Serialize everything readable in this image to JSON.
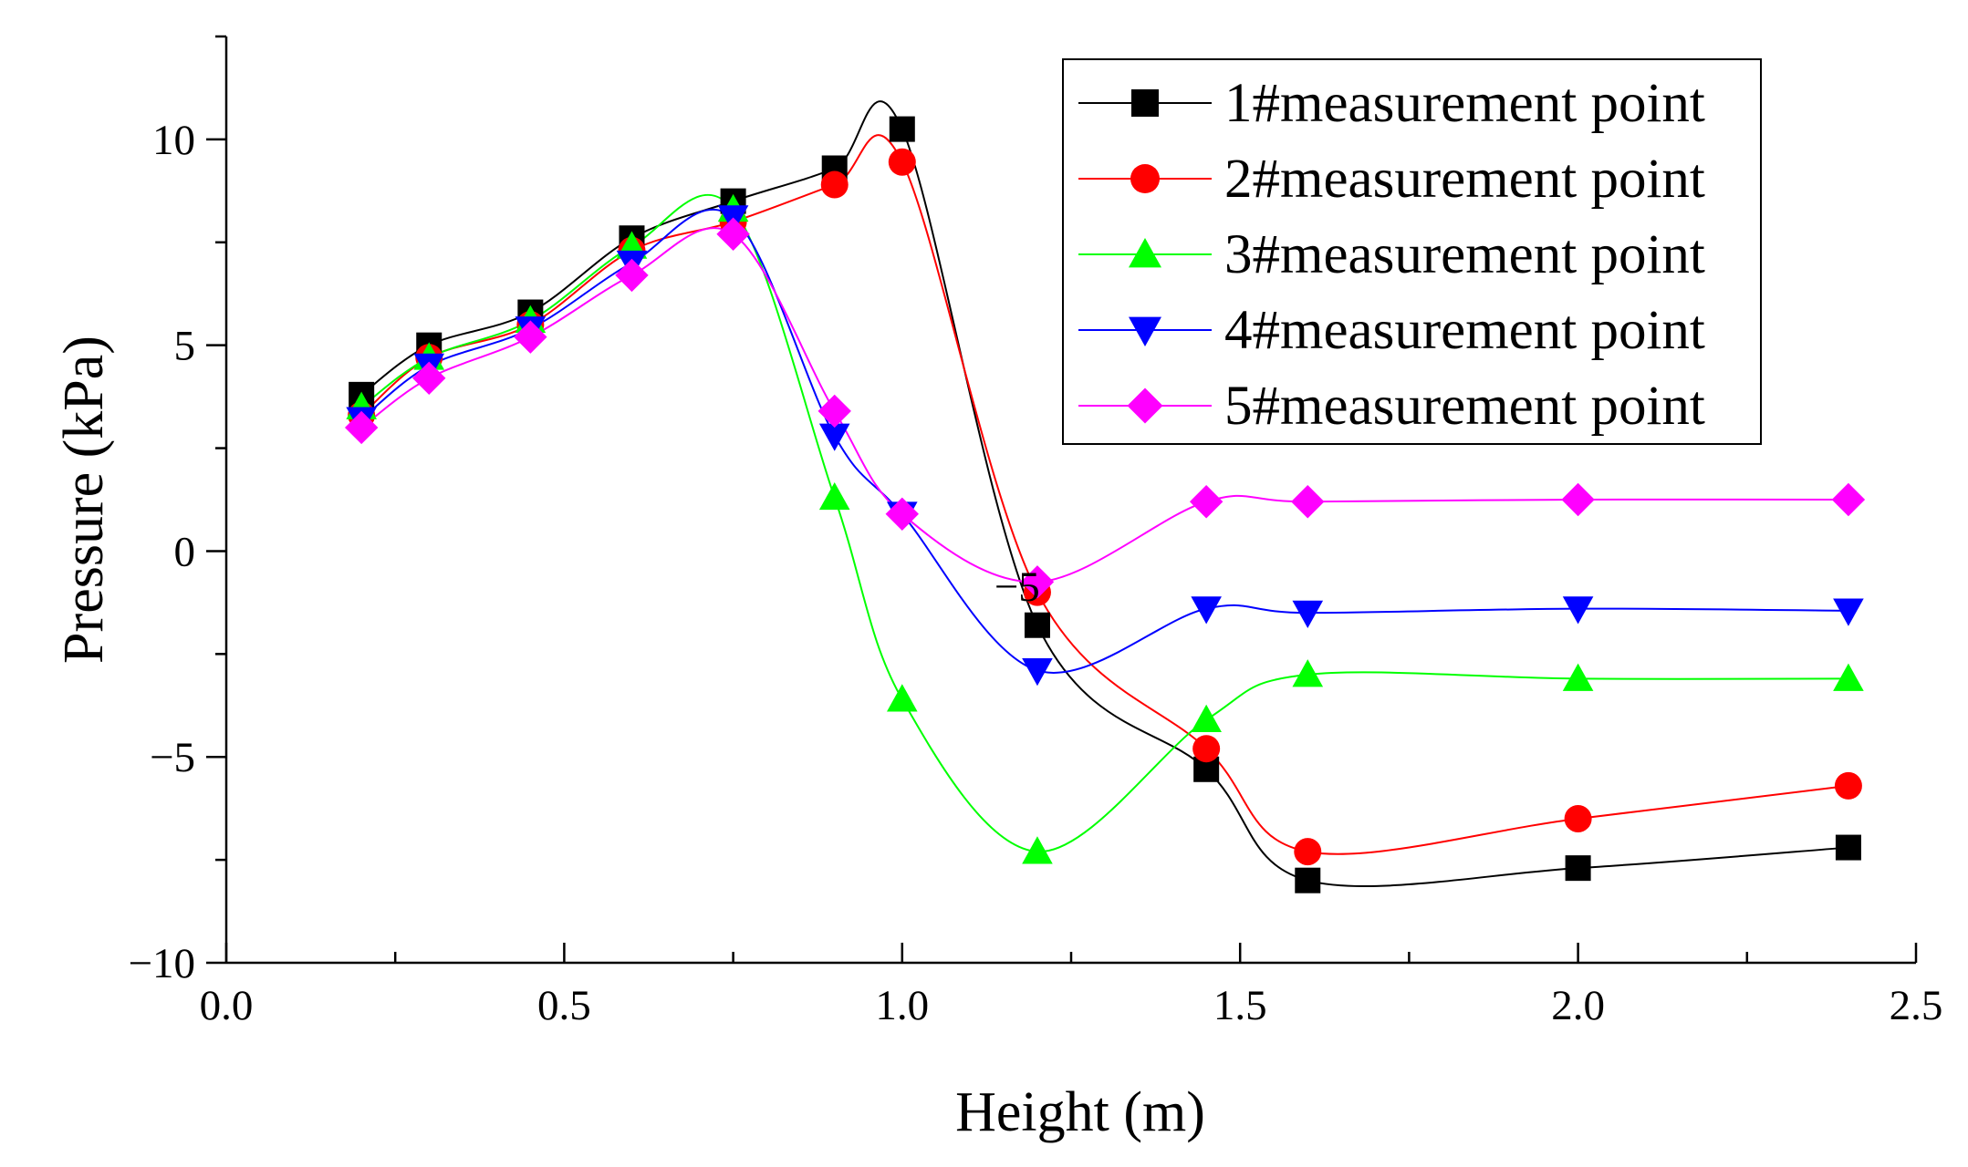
{
  "chart_data": {
    "type": "line",
    "title": "",
    "xlabel": "Height (m)",
    "ylabel": "Pressure (kPa)",
    "xlim": [
      0,
      2.5
    ],
    "ylim": [
      -10,
      12.5
    ],
    "xticks": [
      0.0,
      0.5,
      1.0,
      1.5,
      2.0,
      2.5
    ],
    "xtick_labels": [
      "0.0",
      "0.5",
      "1.0",
      "1.5",
      "2.0",
      "2.5"
    ],
    "yticks": [
      -10,
      -5,
      0,
      5,
      10
    ],
    "ytick_labels": [
      "−10",
      "−5",
      "0",
      "5",
      "10"
    ],
    "grid": false,
    "legend_position": "top-right",
    "annotation": {
      "text": "−5",
      "x": 1.17,
      "y": -0.85
    },
    "x": [
      0.2,
      0.3,
      0.45,
      0.6,
      0.75,
      0.9,
      1.0,
      1.2,
      1.45,
      1.6,
      2.0,
      2.4
    ],
    "series": [
      {
        "name": "1#measurement point",
        "color": "#000000",
        "marker": "square",
        "values": [
          3.8,
          5.0,
          5.8,
          7.6,
          8.5,
          9.3,
          10.25,
          -1.8,
          -5.3,
          -8.0,
          -7.7,
          -7.2
        ]
      },
      {
        "name": "2#measurement point",
        "color": "#ff0000",
        "marker": "circle",
        "values": [
          3.3,
          4.7,
          5.5,
          7.3,
          8.0,
          8.9,
          9.45,
          -1.0,
          -4.8,
          -7.3,
          -6.5,
          -5.7
        ]
      },
      {
        "name": "3#measurement point",
        "color": "#00ff00",
        "marker": "triangle-up",
        "values": [
          3.5,
          4.7,
          5.6,
          7.4,
          8.3,
          1.3,
          -3.6,
          -7.3,
          -4.1,
          -3.0,
          -3.1,
          -3.1
        ]
      },
      {
        "name": "4#measurement point",
        "color": "#0000ff",
        "marker": "triangle-down",
        "values": [
          3.2,
          4.5,
          5.4,
          7.0,
          8.1,
          2.8,
          0.9,
          -2.9,
          -1.4,
          -1.5,
          -1.4,
          -1.45
        ]
      },
      {
        "name": "5#measurement point",
        "color": "#ff00ff",
        "marker": "diamond",
        "values": [
          3.0,
          4.2,
          5.2,
          6.7,
          7.7,
          3.4,
          0.9,
          -0.75,
          1.2,
          1.2,
          1.25,
          1.25
        ]
      }
    ]
  }
}
